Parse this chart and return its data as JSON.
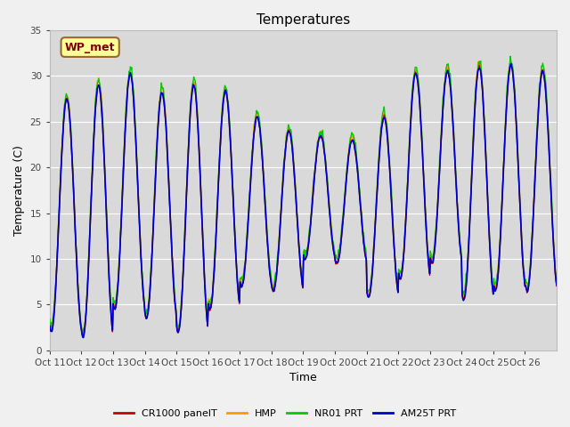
{
  "title": "Temperatures",
  "xlabel": "Time",
  "ylabel": "Temperature (C)",
  "ylim": [
    0,
    35
  ],
  "yticks": [
    0,
    5,
    10,
    15,
    20,
    25,
    30,
    35
  ],
  "fig_bg_color": "#f0f0f0",
  "plot_bg_color": "#d9d9d9",
  "grid_color": "#ffffff",
  "series_colors": {
    "CR1000 panelT": "#cc0000",
    "HMP": "#ff9900",
    "NR01 PRT": "#00cc00",
    "AM25T PRT": "#0000cc"
  },
  "annotation_text": "WP_met",
  "annotation_bg": "#ffff99",
  "annotation_border": "#996633",
  "annotation_text_color": "#800000",
  "n_days": 16,
  "x_tick_labels": [
    "Oct 11",
    "Oct 12",
    "Oct 13",
    "Oct 14",
    "Oct 15",
    "Oct 16",
    "Oct 17",
    "Oct 18",
    "Oct 19",
    "Oct 20",
    "Oct 21",
    "Oct 22",
    "Oct 23",
    "Oct 24",
    "Oct 25",
    "Oct 26"
  ],
  "day_maxes": [
    27.5,
    29.0,
    30.2,
    28.2,
    29.0,
    28.3,
    25.5,
    24.0,
    23.5,
    23.0,
    25.5,
    30.3,
    30.5,
    31.0,
    31.2,
    30.5
  ],
  "day_mines": [
    2.0,
    1.5,
    4.5,
    3.5,
    2.0,
    4.5,
    7.0,
    6.5,
    10.0,
    9.5,
    5.8,
    7.8,
    9.5,
    5.5,
    6.5,
    6.5
  ]
}
